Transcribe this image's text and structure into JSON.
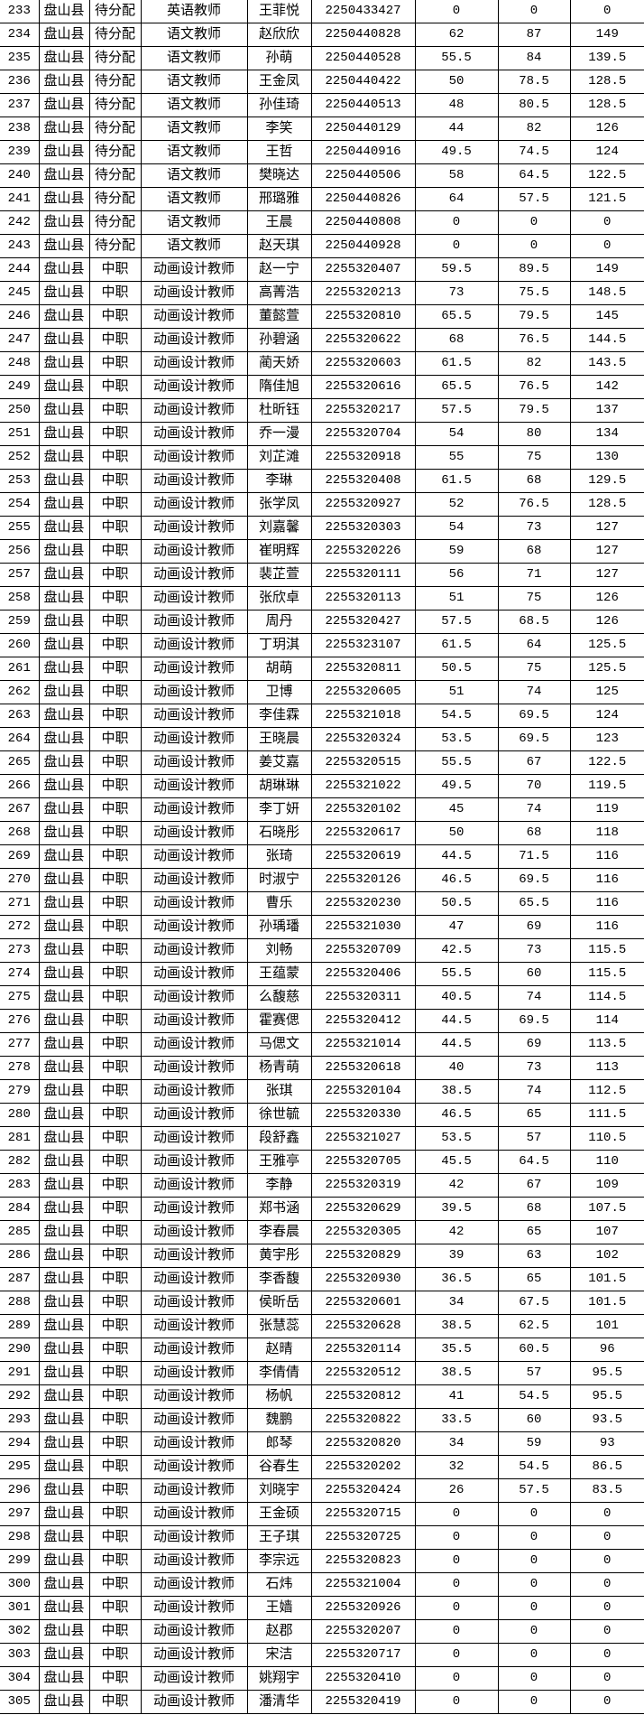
{
  "rows": [
    [
      "233",
      "盘山县",
      "待分配",
      "英语教师",
      "王菲悦",
      "2250433427",
      "0",
      "0",
      "0"
    ],
    [
      "234",
      "盘山县",
      "待分配",
      "语文教师",
      "赵欣欣",
      "2250440828",
      "62",
      "87",
      "149"
    ],
    [
      "235",
      "盘山县",
      "待分配",
      "语文教师",
      "孙萌",
      "2250440528",
      "55.5",
      "84",
      "139.5"
    ],
    [
      "236",
      "盘山县",
      "待分配",
      "语文教师",
      "王金凤",
      "2250440422",
      "50",
      "78.5",
      "128.5"
    ],
    [
      "237",
      "盘山县",
      "待分配",
      "语文教师",
      "孙佳琦",
      "2250440513",
      "48",
      "80.5",
      "128.5"
    ],
    [
      "238",
      "盘山县",
      "待分配",
      "语文教师",
      "李笑",
      "2250440129",
      "44",
      "82",
      "126"
    ],
    [
      "239",
      "盘山县",
      "待分配",
      "语文教师",
      "王哲",
      "2250440916",
      "49.5",
      "74.5",
      "124"
    ],
    [
      "240",
      "盘山县",
      "待分配",
      "语文教师",
      "樊晓达",
      "2250440506",
      "58",
      "64.5",
      "122.5"
    ],
    [
      "241",
      "盘山县",
      "待分配",
      "语文教师",
      "邢璐雅",
      "2250440826",
      "64",
      "57.5",
      "121.5"
    ],
    [
      "242",
      "盘山县",
      "待分配",
      "语文教师",
      "王晨",
      "2250440808",
      "0",
      "0",
      "0"
    ],
    [
      "243",
      "盘山县",
      "待分配",
      "语文教师",
      "赵天琪",
      "2250440928",
      "0",
      "0",
      "0"
    ],
    [
      "244",
      "盘山县",
      "中职",
      "动画设计教师",
      "赵一宁",
      "2255320407",
      "59.5",
      "89.5",
      "149"
    ],
    [
      "245",
      "盘山县",
      "中职",
      "动画设计教师",
      "高菁浩",
      "2255320213",
      "73",
      "75.5",
      "148.5"
    ],
    [
      "246",
      "盘山县",
      "中职",
      "动画设计教师",
      "董懿萱",
      "2255320810",
      "65.5",
      "79.5",
      "145"
    ],
    [
      "247",
      "盘山县",
      "中职",
      "动画设计教师",
      "孙碧涵",
      "2255320622",
      "68",
      "76.5",
      "144.5"
    ],
    [
      "248",
      "盘山县",
      "中职",
      "动画设计教师",
      "蔺天娇",
      "2255320603",
      "61.5",
      "82",
      "143.5"
    ],
    [
      "249",
      "盘山县",
      "中职",
      "动画设计教师",
      "隋佳旭",
      "2255320616",
      "65.5",
      "76.5",
      "142"
    ],
    [
      "250",
      "盘山县",
      "中职",
      "动画设计教师",
      "杜昕钰",
      "2255320217",
      "57.5",
      "79.5",
      "137"
    ],
    [
      "251",
      "盘山县",
      "中职",
      "动画设计教师",
      "乔一漫",
      "2255320704",
      "54",
      "80",
      "134"
    ],
    [
      "252",
      "盘山县",
      "中职",
      "动画设计教师",
      "刘芷滩",
      "2255320918",
      "55",
      "75",
      "130"
    ],
    [
      "253",
      "盘山县",
      "中职",
      "动画设计教师",
      "李琳",
      "2255320408",
      "61.5",
      "68",
      "129.5"
    ],
    [
      "254",
      "盘山县",
      "中职",
      "动画设计教师",
      "张学凤",
      "2255320927",
      "52",
      "76.5",
      "128.5"
    ],
    [
      "255",
      "盘山县",
      "中职",
      "动画设计教师",
      "刘嘉馨",
      "2255320303",
      "54",
      "73",
      "127"
    ],
    [
      "256",
      "盘山县",
      "中职",
      "动画设计教师",
      "崔明辉",
      "2255320226",
      "59",
      "68",
      "127"
    ],
    [
      "257",
      "盘山县",
      "中职",
      "动画设计教师",
      "裴芷萱",
      "2255320111",
      "56",
      "71",
      "127"
    ],
    [
      "258",
      "盘山县",
      "中职",
      "动画设计教师",
      "张欣卓",
      "2255320113",
      "51",
      "75",
      "126"
    ],
    [
      "259",
      "盘山县",
      "中职",
      "动画设计教师",
      "周丹",
      "2255320427",
      "57.5",
      "68.5",
      "126"
    ],
    [
      "260",
      "盘山县",
      "中职",
      "动画设计教师",
      "丁玥淇",
      "2255323107",
      "61.5",
      "64",
      "125.5"
    ],
    [
      "261",
      "盘山县",
      "中职",
      "动画设计教师",
      "胡萌",
      "2255320811",
      "50.5",
      "75",
      "125.5"
    ],
    [
      "262",
      "盘山县",
      "中职",
      "动画设计教师",
      "卫博",
      "2255320605",
      "51",
      "74",
      "125"
    ],
    [
      "263",
      "盘山县",
      "中职",
      "动画设计教师",
      "李佳霖",
      "2255321018",
      "54.5",
      "69.5",
      "124"
    ],
    [
      "264",
      "盘山县",
      "中职",
      "动画设计教师",
      "王晓晨",
      "2255320324",
      "53.5",
      "69.5",
      "123"
    ],
    [
      "265",
      "盘山县",
      "中职",
      "动画设计教师",
      "姜艾嘉",
      "2255320515",
      "55.5",
      "67",
      "122.5"
    ],
    [
      "266",
      "盘山县",
      "中职",
      "动画设计教师",
      "胡琳琳",
      "2255321022",
      "49.5",
      "70",
      "119.5"
    ],
    [
      "267",
      "盘山县",
      "中职",
      "动画设计教师",
      "李丁妍",
      "2255320102",
      "45",
      "74",
      "119"
    ],
    [
      "268",
      "盘山县",
      "中职",
      "动画设计教师",
      "石晓彤",
      "2255320617",
      "50",
      "68",
      "118"
    ],
    [
      "269",
      "盘山县",
      "中职",
      "动画设计教师",
      "张琦",
      "2255320619",
      "44.5",
      "71.5",
      "116"
    ],
    [
      "270",
      "盘山县",
      "中职",
      "动画设计教师",
      "时淑宁",
      "2255320126",
      "46.5",
      "69.5",
      "116"
    ],
    [
      "271",
      "盘山县",
      "中职",
      "动画设计教师",
      "曹乐",
      "2255320230",
      "50.5",
      "65.5",
      "116"
    ],
    [
      "272",
      "盘山县",
      "中职",
      "动画设计教师",
      "孙瑀璠",
      "2255321030",
      "47",
      "69",
      "116"
    ],
    [
      "273",
      "盘山县",
      "中职",
      "动画设计教师",
      "刘畅",
      "2255320709",
      "42.5",
      "73",
      "115.5"
    ],
    [
      "274",
      "盘山县",
      "中职",
      "动画设计教师",
      "王蕴蒙",
      "2255320406",
      "55.5",
      "60",
      "115.5"
    ],
    [
      "275",
      "盘山县",
      "中职",
      "动画设计教师",
      "么馥慈",
      "2255320311",
      "40.5",
      "74",
      "114.5"
    ],
    [
      "276",
      "盘山县",
      "中职",
      "动画设计教师",
      "霍赛偲",
      "2255320412",
      "44.5",
      "69.5",
      "114"
    ],
    [
      "277",
      "盘山县",
      "中职",
      "动画设计教师",
      "马偲文",
      "2255321014",
      "44.5",
      "69",
      "113.5"
    ],
    [
      "278",
      "盘山县",
      "中职",
      "动画设计教师",
      "杨青萌",
      "2255320618",
      "40",
      "73",
      "113"
    ],
    [
      "279",
      "盘山县",
      "中职",
      "动画设计教师",
      "张琪",
      "2255320104",
      "38.5",
      "74",
      "112.5"
    ],
    [
      "280",
      "盘山县",
      "中职",
      "动画设计教师",
      "徐世毓",
      "2255320330",
      "46.5",
      "65",
      "111.5"
    ],
    [
      "281",
      "盘山县",
      "中职",
      "动画设计教师",
      "段舒鑫",
      "2255321027",
      "53.5",
      "57",
      "110.5"
    ],
    [
      "282",
      "盘山县",
      "中职",
      "动画设计教师",
      "王雅亭",
      "2255320705",
      "45.5",
      "64.5",
      "110"
    ],
    [
      "283",
      "盘山县",
      "中职",
      "动画设计教师",
      "李静",
      "2255320319",
      "42",
      "67",
      "109"
    ],
    [
      "284",
      "盘山县",
      "中职",
      "动画设计教师",
      "郑书涵",
      "2255320629",
      "39.5",
      "68",
      "107.5"
    ],
    [
      "285",
      "盘山县",
      "中职",
      "动画设计教师",
      "李春晨",
      "2255320305",
      "42",
      "65",
      "107"
    ],
    [
      "286",
      "盘山县",
      "中职",
      "动画设计教师",
      "黄宇彤",
      "2255320829",
      "39",
      "63",
      "102"
    ],
    [
      "287",
      "盘山县",
      "中职",
      "动画设计教师",
      "李香馥",
      "2255320930",
      "36.5",
      "65",
      "101.5"
    ],
    [
      "288",
      "盘山县",
      "中职",
      "动画设计教师",
      "侯昕岳",
      "2255320601",
      "34",
      "67.5",
      "101.5"
    ],
    [
      "289",
      "盘山县",
      "中职",
      "动画设计教师",
      "张慧蕊",
      "2255320628",
      "38.5",
      "62.5",
      "101"
    ],
    [
      "290",
      "盘山县",
      "中职",
      "动画设计教师",
      "赵晴",
      "2255320114",
      "35.5",
      "60.5",
      "96"
    ],
    [
      "291",
      "盘山县",
      "中职",
      "动画设计教师",
      "李倩倩",
      "2255320512",
      "38.5",
      "57",
      "95.5"
    ],
    [
      "292",
      "盘山县",
      "中职",
      "动画设计教师",
      "杨帆",
      "2255320812",
      "41",
      "54.5",
      "95.5"
    ],
    [
      "293",
      "盘山县",
      "中职",
      "动画设计教师",
      "魏鹏",
      "2255320822",
      "33.5",
      "60",
      "93.5"
    ],
    [
      "294",
      "盘山县",
      "中职",
      "动画设计教师",
      "郎琴",
      "2255320820",
      "34",
      "59",
      "93"
    ],
    [
      "295",
      "盘山县",
      "中职",
      "动画设计教师",
      "谷春生",
      "2255320202",
      "32",
      "54.5",
      "86.5"
    ],
    [
      "296",
      "盘山县",
      "中职",
      "动画设计教师",
      "刘晓宇",
      "2255320424",
      "26",
      "57.5",
      "83.5"
    ],
    [
      "297",
      "盘山县",
      "中职",
      "动画设计教师",
      "王金硕",
      "2255320715",
      "0",
      "0",
      "0"
    ],
    [
      "298",
      "盘山县",
      "中职",
      "动画设计教师",
      "王子琪",
      "2255320725",
      "0",
      "0",
      "0"
    ],
    [
      "299",
      "盘山县",
      "中职",
      "动画设计教师",
      "李宗远",
      "2255320823",
      "0",
      "0",
      "0"
    ],
    [
      "300",
      "盘山县",
      "中职",
      "动画设计教师",
      "石炜",
      "2255321004",
      "0",
      "0",
      "0"
    ],
    [
      "301",
      "盘山县",
      "中职",
      "动画设计教师",
      "王嫱",
      "2255320926",
      "0",
      "0",
      "0"
    ],
    [
      "302",
      "盘山县",
      "中职",
      "动画设计教师",
      "赵郡",
      "2255320207",
      "0",
      "0",
      "0"
    ],
    [
      "303",
      "盘山县",
      "中职",
      "动画设计教师",
      "宋洁",
      "2255320717",
      "0",
      "0",
      "0"
    ],
    [
      "304",
      "盘山县",
      "中职",
      "动画设计教师",
      "姚翔宇",
      "2255320410",
      "0",
      "0",
      "0"
    ],
    [
      "305",
      "盘山县",
      "中职",
      "动画设计教师",
      "潘清华",
      "2255320419",
      "0",
      "0",
      "0"
    ]
  ]
}
